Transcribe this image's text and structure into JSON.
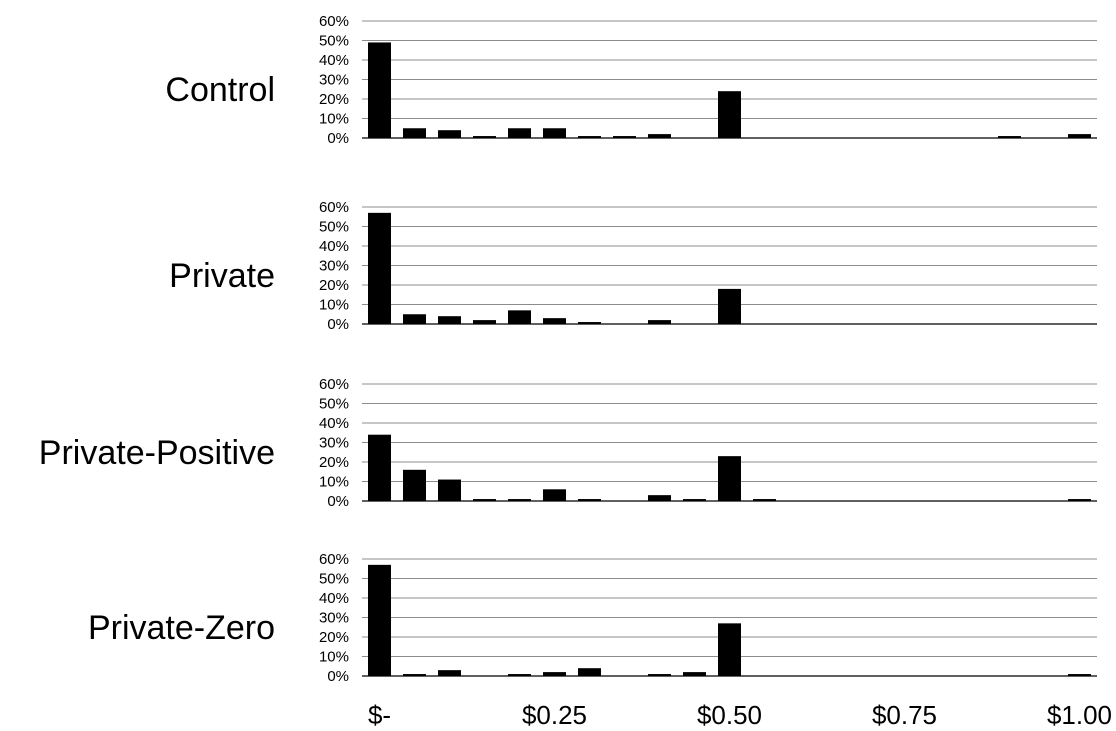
{
  "chart_data": {
    "type": "bar",
    "x_tick_labels": [
      "$-",
      "$0.25",
      "$0.50",
      "$0.75",
      "$1.00"
    ],
    "x_tick_values": [
      0,
      0.25,
      0.5,
      0.75,
      1.0
    ],
    "x": [
      0,
      0.05,
      0.1,
      0.15,
      0.2,
      0.25,
      0.3,
      0.35,
      0.4,
      0.45,
      0.5,
      0.55,
      0.6,
      0.65,
      0.7,
      0.75,
      0.8,
      0.85,
      0.9,
      0.95,
      1.0
    ],
    "ylim": [
      0,
      60
    ],
    "y_ticks": [
      "0%",
      "10%",
      "20%",
      "30%",
      "40%",
      "50%",
      "60%"
    ],
    "grid": true,
    "bar_color": "#000000",
    "panels": [
      {
        "name": "Control",
        "values": [
          49,
          5,
          4,
          1,
          5,
          5,
          1,
          1,
          2,
          0,
          24,
          0,
          0,
          0,
          0,
          0,
          0,
          0,
          1,
          0,
          2
        ]
      },
      {
        "name": "Private",
        "values": [
          57,
          5,
          4,
          2,
          7,
          3,
          1,
          0,
          2,
          0,
          18,
          0,
          0,
          0,
          0,
          0,
          0,
          0,
          0,
          0,
          0
        ]
      },
      {
        "name": "Private-Positive",
        "values": [
          34,
          16,
          11,
          1,
          1,
          6,
          1,
          0,
          3,
          1,
          23,
          1,
          0,
          0,
          0,
          0,
          0,
          0,
          0,
          0,
          1
        ]
      },
      {
        "name": "Private-Zero",
        "values": [
          57,
          1,
          3,
          0,
          1,
          2,
          4,
          0,
          1,
          2,
          27,
          0,
          0,
          0,
          0,
          0,
          0,
          0,
          0,
          0,
          1
        ]
      }
    ]
  }
}
